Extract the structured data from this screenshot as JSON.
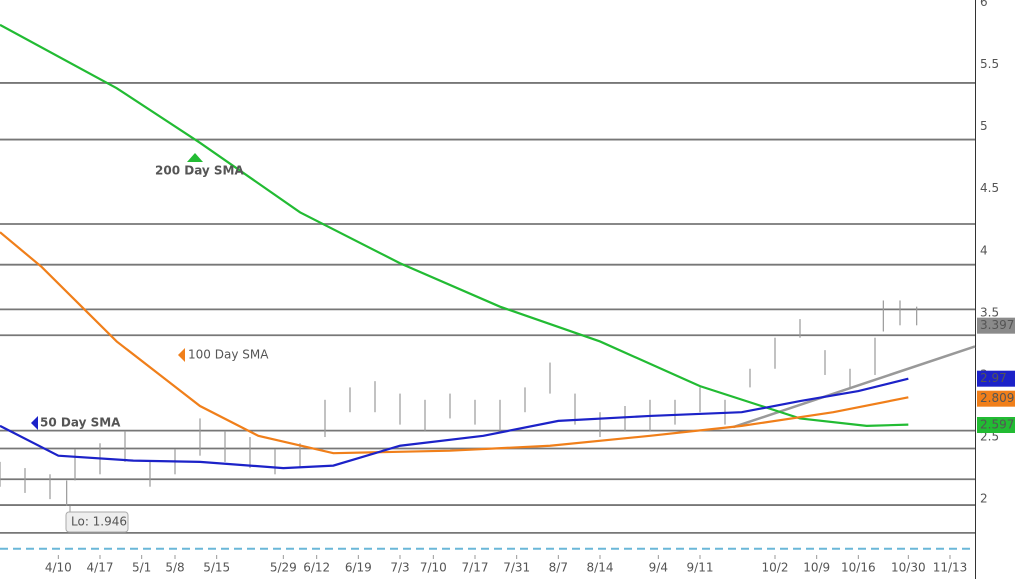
{
  "chart_data": {
    "type": "price",
    "xlim": [
      0,
      117
    ],
    "ylim": [
      1.55,
      6.02
    ],
    "xticks": [
      {
        "value": 7,
        "label": "4/10"
      },
      {
        "value": 12,
        "label": "4/17"
      },
      {
        "value": 17,
        "label": "5/1"
      },
      {
        "value": 21,
        "label": "5/8"
      },
      {
        "value": 26,
        "label": "5/15"
      },
      {
        "value": 34,
        "label": "5/29"
      },
      {
        "value": 38,
        "label": "6/12"
      },
      {
        "value": 43,
        "label": "6/19"
      },
      {
        "value": 48,
        "label": "7/3"
      },
      {
        "value": 52,
        "label": "7/10"
      },
      {
        "value": 57,
        "label": "7/17"
      },
      {
        "value": 62,
        "label": "7/31"
      },
      {
        "value": 67,
        "label": "8/7"
      },
      {
        "value": 72,
        "label": "8/14"
      },
      {
        "value": 79,
        "label": "9/4"
      },
      {
        "value": 84,
        "label": "9/11"
      },
      {
        "value": 93,
        "label": "10/2"
      },
      {
        "value": 98,
        "label": "10/9"
      },
      {
        "value": 103,
        "label": "10/16"
      },
      {
        "value": 109,
        "label": "10/30"
      },
      {
        "value": 114,
        "label": "11/13"
      }
    ],
    "yticks": [
      2,
      2.5,
      3,
      3.5,
      4,
      4.5,
      5,
      5.5,
      6
    ],
    "levels": [
      5.352,
      4.896,
      4.216,
      3.888,
      3.528,
      3.32,
      2.552,
      2.408,
      2.16,
      1.952,
      1.728
    ],
    "dashed_level": 1.6,
    "trendline": {
      "x": [
        88,
        117
      ],
      "values": [
        2.58,
        3.23
      ],
      "color": "#999999"
    },
    "bars": {
      "color": "#999999",
      "x": [
        0,
        3,
        6,
        8,
        9,
        12,
        15,
        18,
        21,
        24,
        27,
        30,
        33,
        36,
        39,
        42,
        45,
        48,
        51,
        54,
        57,
        60,
        63,
        66,
        69,
        72,
        75,
        78,
        81,
        84,
        87,
        90,
        93,
        96,
        99,
        102,
        105,
        106,
        108,
        110
      ],
      "low": [
        2.1,
        2.05,
        2.0,
        1.946,
        2.15,
        2.2,
        2.3,
        2.1,
        2.2,
        2.35,
        2.3,
        2.25,
        2.2,
        2.25,
        2.5,
        2.7,
        2.7,
        2.6,
        2.55,
        2.65,
        2.6,
        2.55,
        2.7,
        2.85,
        2.6,
        2.5,
        2.55,
        2.55,
        2.6,
        2.7,
        2.6,
        2.9,
        3.05,
        3.3,
        3.0,
        2.9,
        3.0,
        3.35,
        3.4,
        3.4
      ],
      "high": [
        2.3,
        2.25,
        2.2,
        2.15,
        2.4,
        2.45,
        2.55,
        2.3,
        2.4,
        2.65,
        2.55,
        2.5,
        2.4,
        2.45,
        2.8,
        2.9,
        2.95,
        2.85,
        2.8,
        2.85,
        2.8,
        2.8,
        2.9,
        3.1,
        2.85,
        2.7,
        2.75,
        2.8,
        2.8,
        2.9,
        2.8,
        3.05,
        3.3,
        3.45,
        3.2,
        3.05,
        3.3,
        3.6,
        3.6,
        3.55
      ]
    },
    "series": [
      {
        "name": "200 Day SMA",
        "color": "#22bb33",
        "x": [
          0,
          14,
          24,
          36,
          48,
          60,
          72,
          84,
          96,
          104,
          109
        ],
        "values": [
          5.82,
          5.31,
          4.87,
          4.31,
          3.9,
          3.55,
          3.27,
          2.91,
          2.65,
          2.59,
          2.6
        ],
        "last": 2.597
      },
      {
        "name": "100  Day SMA",
        "color": "#f07f1a",
        "x": [
          0,
          5,
          14,
          24,
          31,
          40,
          54,
          66,
          78,
          89,
          100,
          109
        ],
        "values": [
          4.15,
          3.87,
          3.27,
          2.75,
          2.51,
          2.37,
          2.39,
          2.43,
          2.51,
          2.59,
          2.7,
          2.82
        ],
        "last": 2.809
      },
      {
        "name": "50 Day SMA",
        "color": "#1c22c8",
        "x": [
          0,
          7,
          16,
          24,
          34,
          40,
          48,
          58,
          67,
          78,
          89,
          96,
          103,
          109
        ],
        "values": [
          2.59,
          2.35,
          2.31,
          2.3,
          2.25,
          2.27,
          2.43,
          2.51,
          2.63,
          2.67,
          2.7,
          2.79,
          2.87,
          2.97
        ],
        "last": 2.97
      }
    ],
    "price_last": 3.397,
    "low_note": "Lo: 1.946"
  }
}
